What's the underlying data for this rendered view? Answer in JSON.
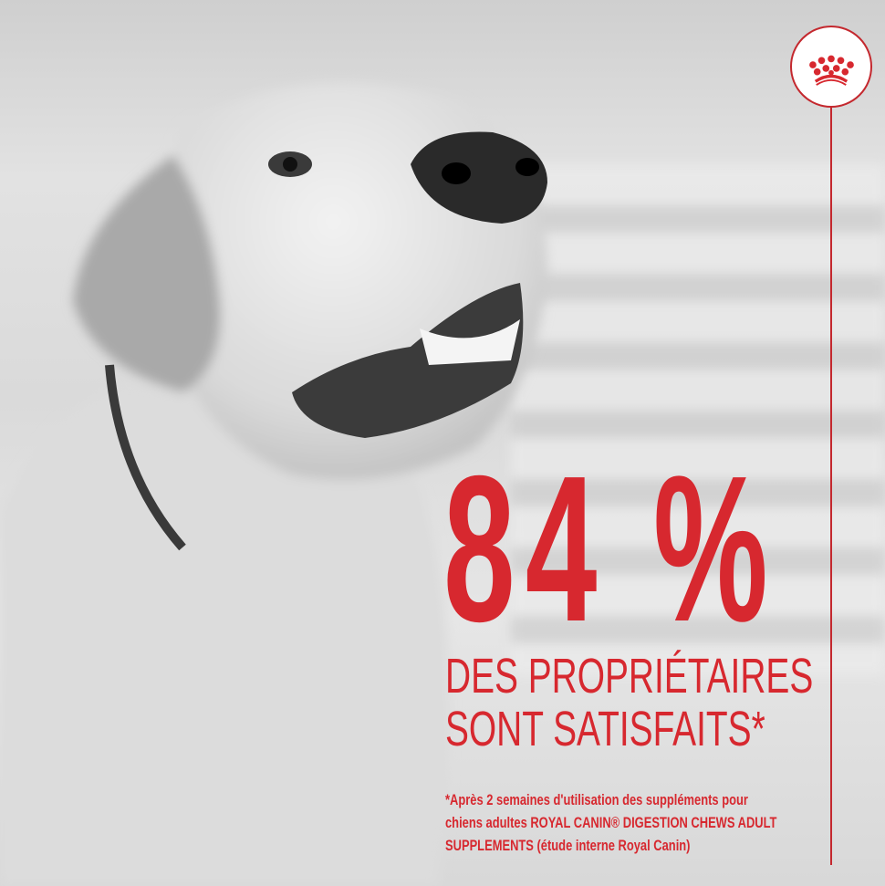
{
  "brand": {
    "name": "Royal Canin",
    "logo_icon": "crown-icon",
    "accent_color": "#d7282f"
  },
  "stat": {
    "value": "84 %",
    "headline_line1": "DES PROPRIÉTAIRES",
    "headline_line2": "SONT SATISFAITS*"
  },
  "footnote": {
    "line1": "*Après 2 semaines d'utilisation des suppléments pour",
    "line2": "chiens adultes ROYAL CANIN® DIGESTION CHEWS ADULT",
    "line3": "SUPPLEMENTS (étude interne Royal Canin)"
  }
}
